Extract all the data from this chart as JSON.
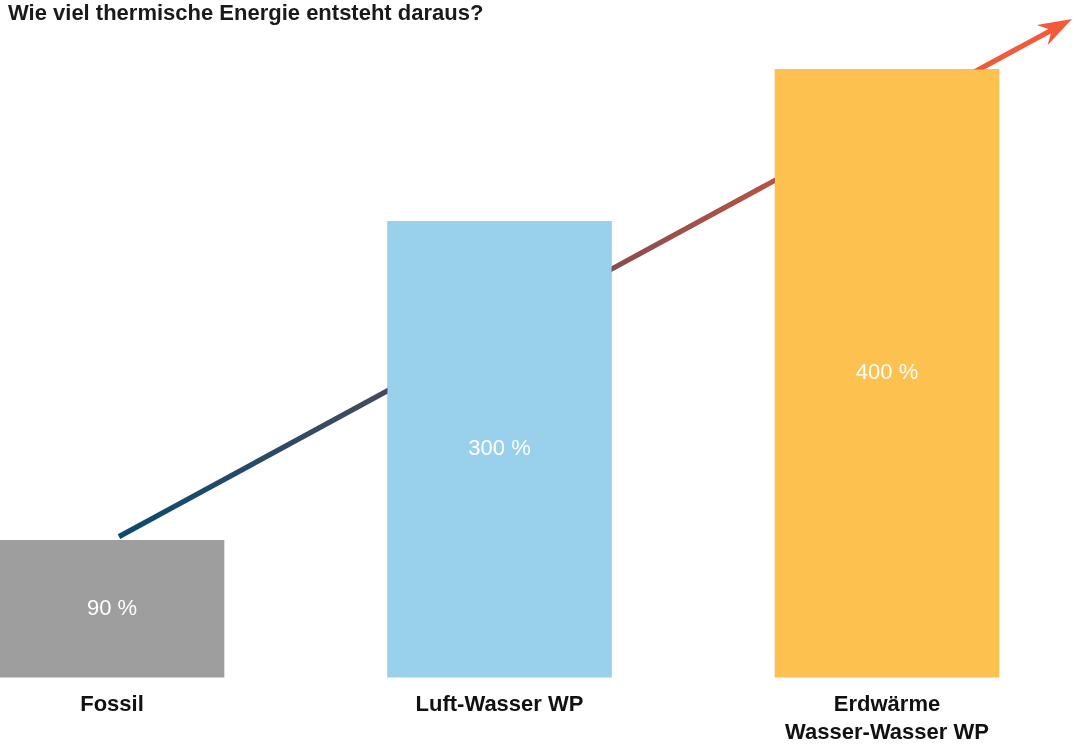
{
  "chart_data": {
    "type": "bar",
    "title": "Wie viel thermische Energie entsteht daraus?",
    "categories": [
      "Fossil",
      "Luft-Wasser WP",
      "Erdwärme Wasser-Wasser WP"
    ],
    "values": [
      90,
      300,
      400
    ],
    "colors": [
      "#9e9e9e",
      "#99d1ec",
      "#fcc14f"
    ],
    "value_labels": [
      "90 %",
      "300 %",
      "400 %"
    ]
  }
}
